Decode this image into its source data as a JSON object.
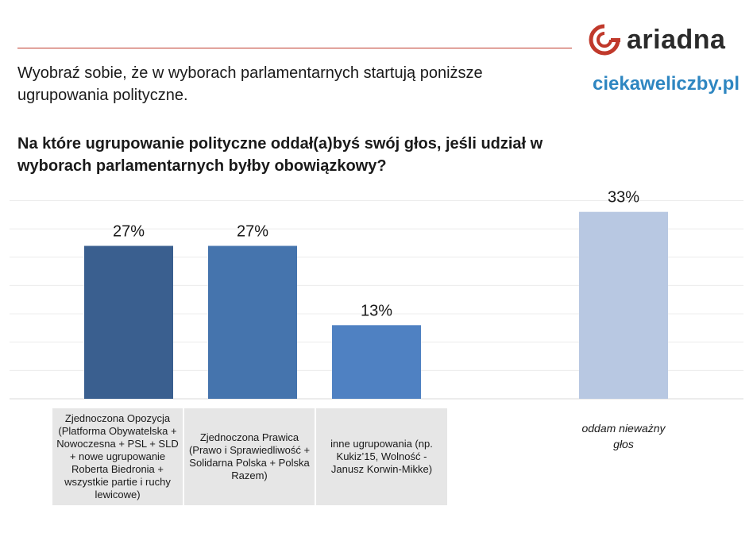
{
  "header": {
    "logo_text": "ariadna",
    "site": "ciekaweliczby.pl"
  },
  "intro": "Wyobraź sobie, że w wyborach parlamentarnych startują poniższe ugrupowania polityczne.",
  "question": "Na które ugrupowanie polityczne oddał(a)byś swój głos, jeśli udział w wyborach parlamentarnych byłby obowiązkowy?",
  "colors": {
    "accent_red": "#c0392b",
    "site_blue": "#2e86c1",
    "bar_colors": [
      "#3a5f8f",
      "#4574ad",
      "#4f81c2",
      "#b8c8e2"
    ]
  },
  "chart_data": {
    "type": "bar",
    "categories": [
      "Zjednoczona Opozycja (Platforma Obywatelska + Nowoczesna + PSL + SLD + nowe ugrupowanie Roberta Biedronia + wszystkie partie i ruchy lewicowe)",
      "Zjednoczona Prawica (Prawo i Sprawiedliwość + Solidarna Polska + Polska Razem)",
      "inne ugrupowania (np. Kukiz’15, Wolność - Janusz Korwin-Mikke)",
      "oddam nieważny głos"
    ],
    "values": [
      27,
      27,
      13,
      33
    ],
    "value_labels": [
      "27%",
      "27%",
      "13%",
      "33%"
    ],
    "unit": "%",
    "ylim": [
      0,
      35
    ],
    "grid": true,
    "legend": "none"
  }
}
